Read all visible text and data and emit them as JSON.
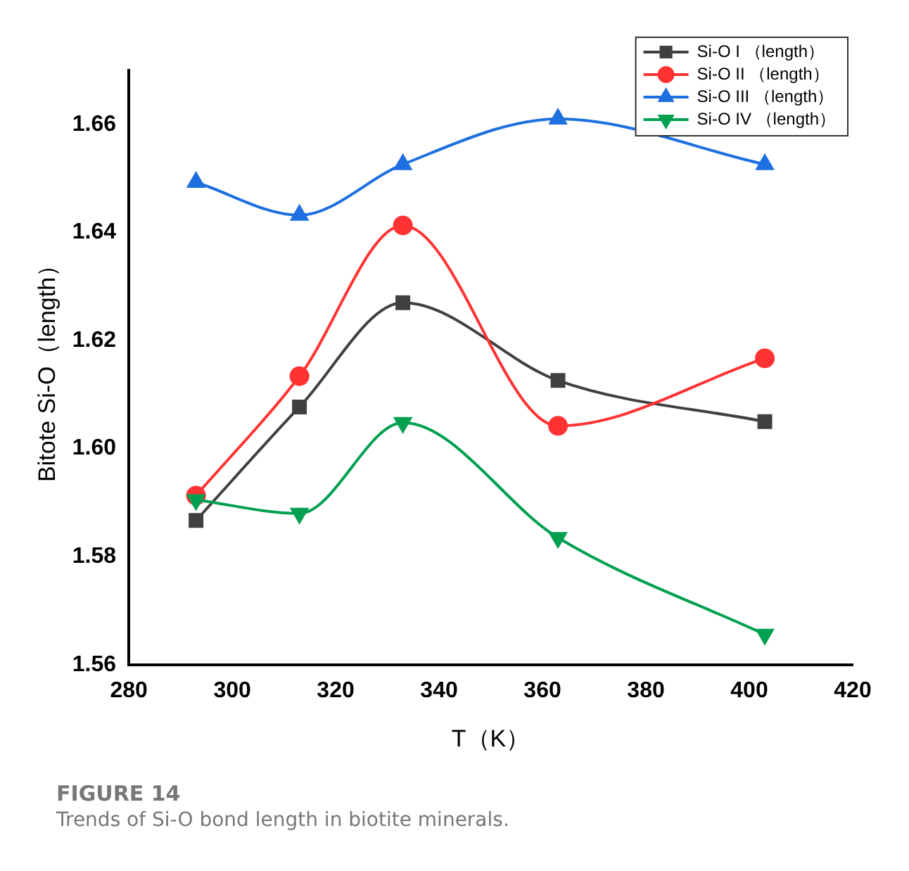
{
  "chart_data": {
    "type": "line",
    "xlabel": "T（K）",
    "ylabel": "Bitote Si-O（length）",
    "x": [
      293,
      313,
      333,
      363,
      403
    ],
    "series": [
      {
        "name": "Si-O I （length）",
        "color": "#404040",
        "marker": "square",
        "values": [
          1.5867,
          1.6077,
          1.627,
          1.6126,
          1.605
        ]
      },
      {
        "name": "Si-O II （length）",
        "color": "#ff3333",
        "marker": "circle",
        "values": [
          1.5913,
          1.6134,
          1.6413,
          1.6042,
          1.6167
        ]
      },
      {
        "name": "Si-O III （length）",
        "color": "#1e6fe0",
        "marker": "triangle",
        "values": [
          1.6493,
          1.6432,
          1.6526,
          1.661,
          1.6526
        ]
      },
      {
        "name": "Si-O IV （length）",
        "color": "#00a050",
        "marker": "triangle-down",
        "values": [
          1.5905,
          1.588,
          1.6048,
          1.5835,
          1.5656
        ]
      }
    ],
    "xlim": [
      280,
      420
    ],
    "xticks": [
      280,
      300,
      320,
      340,
      360,
      380,
      400,
      420
    ],
    "ylim": [
      1.56,
      1.67
    ],
    "yticks": [
      1.56,
      1.58,
      {
        "value": 1.6,
        "label": "1.60"
      },
      1.62,
      1.64,
      1.66
    ],
    "grid": false,
    "legend": "top right",
    "annotations": [
      "FIGURE 14",
      "Trends of Si-O bond length in biotite minerals."
    ]
  }
}
